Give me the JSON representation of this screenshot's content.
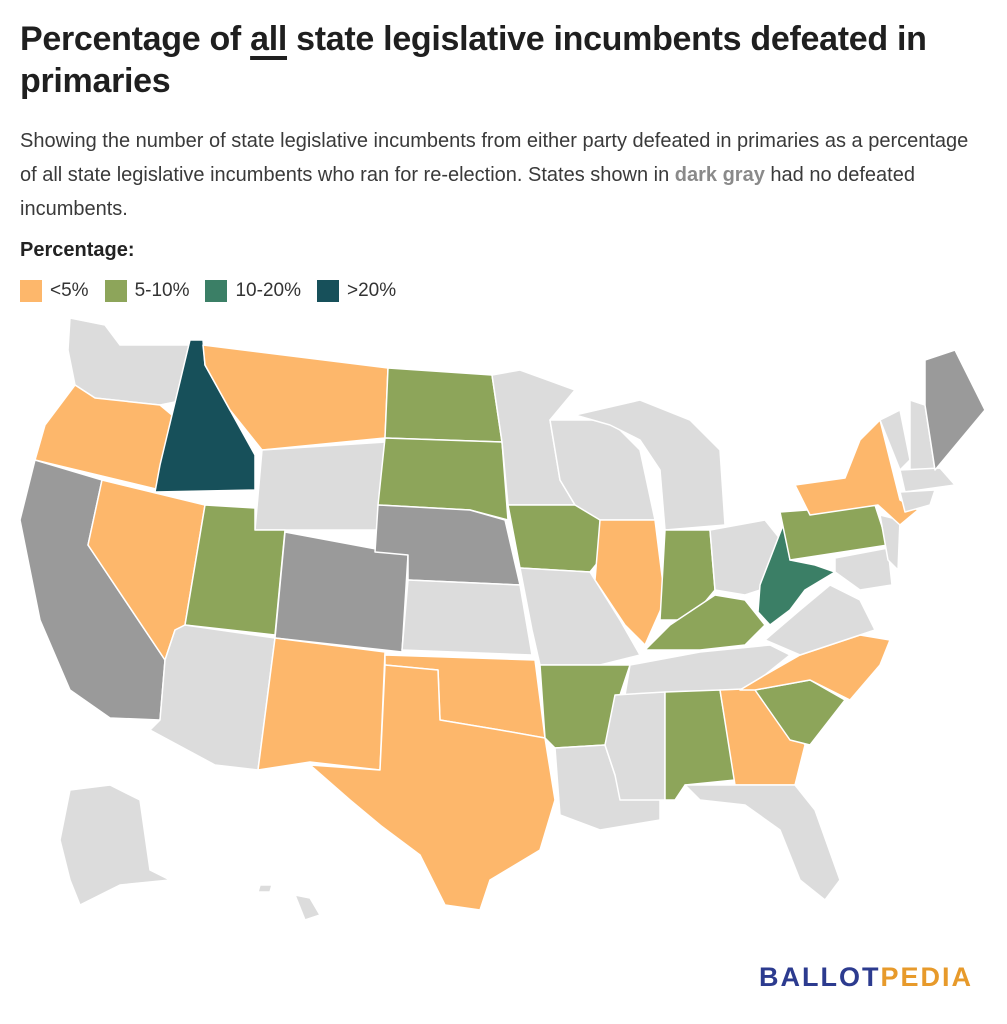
{
  "title": {
    "prefix": "Percentage of ",
    "highlight": "all",
    "suffix": " state legislative incumbents defeated in primaries"
  },
  "subtitle": {
    "before": "Showing the number of state legislative incumbents from either party defeated in primaries as a percentage of all state legislative incumbents who ran for re-election. States shown in ",
    "highlight": "dark gray",
    "after": " had no defeated incumbents."
  },
  "legend": {
    "title": "Percentage:",
    "items": [
      {
        "label": "<5%",
        "color": "#fdb76b"
      },
      {
        "label": "5-10%",
        "color": "#8da55a"
      },
      {
        "label": "10-20%",
        "color": "#3b7f66"
      },
      {
        "label": ">20%",
        "color": "#17505a"
      }
    ]
  },
  "colors": {
    "no_data": "#dcdcdc",
    "none_defeated": "#9a9a9a",
    "lt5": "#fdb76b",
    "p5_10": "#8da55a",
    "p10_20": "#3b7f66",
    "gt20": "#17505a"
  },
  "states": {
    "none_defeated": [
      "California",
      "Colorado",
      "Nebraska",
      "Maine"
    ],
    "lt5": [
      "Oregon",
      "Nevada",
      "Montana",
      "New Mexico",
      "Texas",
      "Oklahoma",
      "Illinois",
      "New York",
      "North Carolina",
      "Georgia"
    ],
    "p5_10": [
      "Utah",
      "North Dakota",
      "South Dakota",
      "Iowa",
      "Arkansas",
      "Indiana",
      "Kentucky",
      "Pennsylvania",
      "South Carolina",
      "Alabama"
    ],
    "p10_20": [
      "West Virginia"
    ],
    "gt20": [
      "Idaho"
    ]
  },
  "logo": {
    "part1": "BALLOT",
    "part2": "PEDIA"
  }
}
